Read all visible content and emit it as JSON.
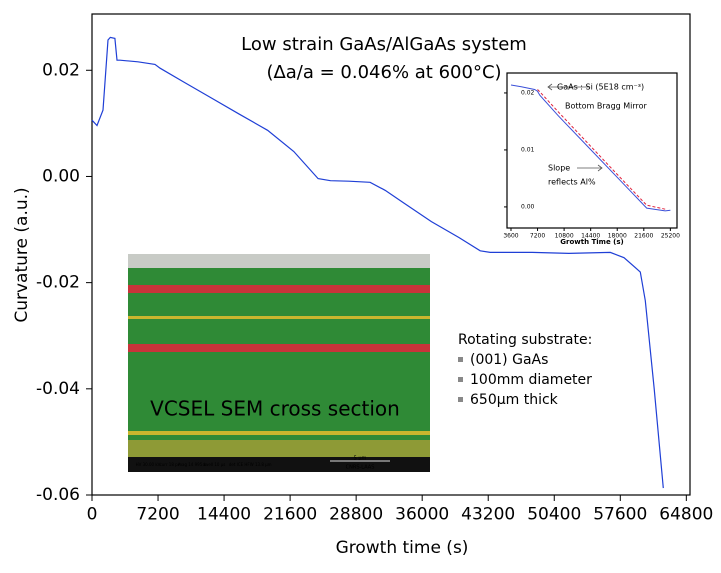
{
  "chart_data": [
    {
      "type": "line",
      "title": "Low strain GaAs/AlGaAs system",
      "subtitle": "(Δa/a = 0.046% at 600°C)",
      "x_label": "Growth time (s)",
      "y_label": "Curvature (a.u.)",
      "x": [
        0,
        545,
        1200,
        1745,
        2000,
        2500,
        2730,
        3050,
        5000,
        6870,
        7420,
        10000,
        13000,
        16000,
        19150,
        22000,
        24650,
        26000,
        28000,
        30320,
        31960,
        34000,
        37000,
        40000,
        42330,
        43420,
        48000,
        52000,
        56510,
        58000,
        59780,
        60330,
        61300,
        62290
      ],
      "series": [
        {
          "color": "#1f3fd6",
          "values": [
            0.0106,
            0.0096,
            0.0125,
            0.0257,
            0.0262,
            0.026,
            0.0219,
            0.0219,
            0.0216,
            0.0211,
            0.0204,
            0.0178,
            0.0148,
            0.0118,
            0.0087,
            0.0047,
            -0.0004,
            -0.0008,
            -0.0009,
            -0.0011,
            -0.0026,
            -0.005,
            -0.0085,
            -0.0115,
            -0.014,
            -0.0143,
            -0.0143,
            -0.0145,
            -0.0143,
            -0.0153,
            -0.018,
            -0.0234,
            -0.04,
            -0.0587
          ]
        }
      ],
      "xlim": [
        0,
        65200
      ],
      "ylim": [
        -0.06,
        0.0306
      ],
      "xticks": [
        0,
        7200,
        14400,
        21600,
        28800,
        36000,
        43200,
        50400,
        57600,
        64800
      ],
      "yticks": [
        {
          "value": 0.02,
          "label": "0.02"
        },
        {
          "value": 0,
          "label": "0.00"
        },
        {
          "value": -0.02,
          "label": "-0.02"
        },
        {
          "value": -0.04,
          "label": "-0.04"
        },
        {
          "value": -0.06,
          "label": "-0.06"
        }
      ],
      "annotations": {
        "image_caption": "VCSEL SEM cross section",
        "sem_info": [
          "HV 30.00 kV",
          "curr 18 pA",
          "mag 14 995 x",
          "dwell 10 µs",
          "det ICE",
          "HFW 13.8 µm"
        ],
        "sem_scale": "5 µm",
        "sem_credit": "CNRS-LAAS",
        "notes_title": "Rotating substrate:",
        "notes": [
          "(001) GaAs",
          "100mm diameter",
          "650µm thick"
        ]
      }
    },
    {
      "type": "line",
      "x_label": "Growth Time (s)",
      "x": [
        3600,
        5000,
        6800,
        7200,
        7500,
        10000,
        14000,
        18000,
        22000,
        24500,
        25200
      ],
      "series": [
        {
          "color": "#3a4fd8",
          "style": "solid",
          "values": [
            0.0214,
            0.0211,
            0.0206,
            0.0203,
            0.0196,
            0.016,
            0.0106,
            0.0052,
            -0.0002,
            -0.0007,
            -0.0006
          ]
        },
        {
          "color": "#e0203a",
          "style": "dashed",
          "values": [
            null,
            null,
            null,
            0.0206,
            0.0202,
            0.0167,
            0.0112,
            0.0057,
            0.0003,
            -0.0004,
            null
          ]
        }
      ],
      "xlim": [
        3060,
        26100
      ],
      "ylim": [
        -0.0037,
        0.0235
      ],
      "xticks": [
        3600,
        7200,
        10800,
        14400,
        18000,
        21600,
        25200
      ],
      "yticks": [
        {
          "value": 0.02,
          "label": "0.02"
        },
        {
          "value": 0.01,
          "label": "0.01"
        },
        {
          "value": 0,
          "label": "0.00"
        }
      ],
      "annotations": {
        "layer_label": "GaAs : Si (5E18 cm⁻³)",
        "mirror_label": "Bottom Bragg Mirror",
        "slope_label": [
          "Slope",
          "reflects Al%"
        ]
      }
    }
  ]
}
